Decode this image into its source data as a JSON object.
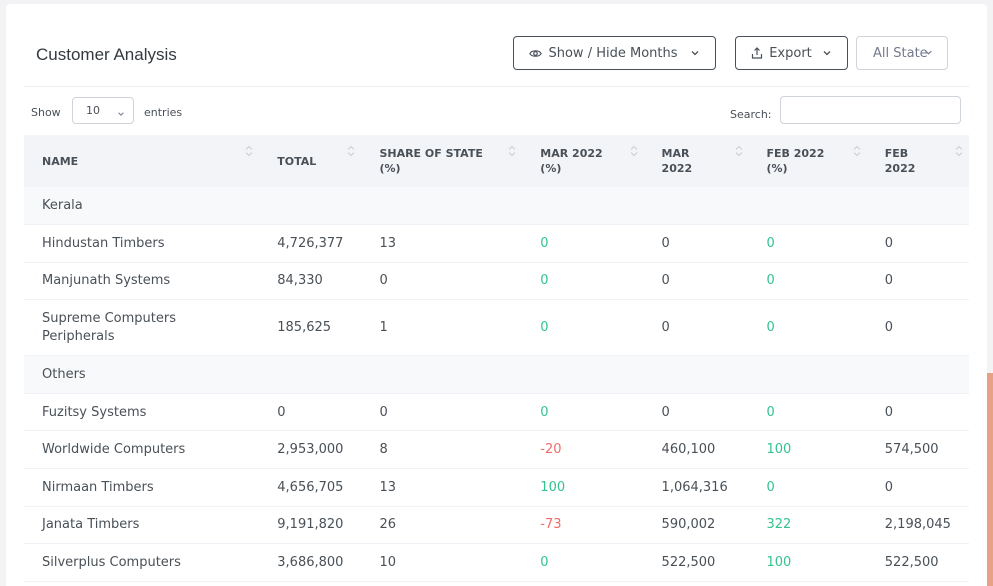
{
  "header": {
    "title": "Customer Analysis",
    "show_hide_label": "Show / Hide Months",
    "export_label": "Export",
    "state_select": "All State"
  },
  "controls": {
    "show_label": "Show",
    "entries_value": "10",
    "entries_label": "entries",
    "search_label": "Search:",
    "search_value": ""
  },
  "table": {
    "columns": [
      [
        "NAME"
      ],
      [
        "TOTAL"
      ],
      [
        "SHARE OF STATE",
        "(%)"
      ],
      [
        "MAR 2022",
        "(%)"
      ],
      [
        "MAR",
        "2022"
      ],
      [
        "FEB 2022",
        "(%)"
      ],
      [
        "FEB",
        "2022"
      ]
    ],
    "rows": [
      {
        "group": "Kerala"
      },
      {
        "cells": [
          [
            "Hindustan Timbers"
          ],
          "4,726,377",
          "13",
          "0",
          "0",
          "0",
          "0"
        ]
      },
      {
        "cells": [
          [
            "Manjunath Systems"
          ],
          "84,330",
          "0",
          "0",
          "0",
          "0",
          "0"
        ]
      },
      {
        "cells": [
          [
            "Supreme Computers",
            "Peripherals"
          ],
          "185,625",
          "1",
          "0",
          "0",
          "0",
          "0"
        ]
      },
      {
        "group": "Others"
      },
      {
        "cells": [
          [
            "Fuzitsy Systems"
          ],
          "0",
          "0",
          "0",
          "0",
          "0",
          "0"
        ]
      },
      {
        "cells": [
          [
            "Worldwide Computers"
          ],
          "2,953,000",
          "8",
          "-20",
          "460,100",
          "100",
          "574,500"
        ]
      },
      {
        "cells": [
          [
            "Nirmaan Timbers"
          ],
          "4,656,705",
          "13",
          "100",
          "1,064,316",
          "0",
          "0"
        ]
      },
      {
        "cells": [
          [
            "Janata Timbers"
          ],
          "9,191,820",
          "26",
          "-73",
          "590,002",
          "322",
          "2,198,045"
        ]
      },
      {
        "cells": [
          [
            "Silverplus Computers"
          ],
          "3,686,800",
          "10",
          "0",
          "522,500",
          "100",
          "522,500"
        ]
      }
    ]
  },
  "colors": {
    "positive": "#34c38f",
    "negative": "#f46a6a",
    "accent_scroll": "#e7a185"
  }
}
